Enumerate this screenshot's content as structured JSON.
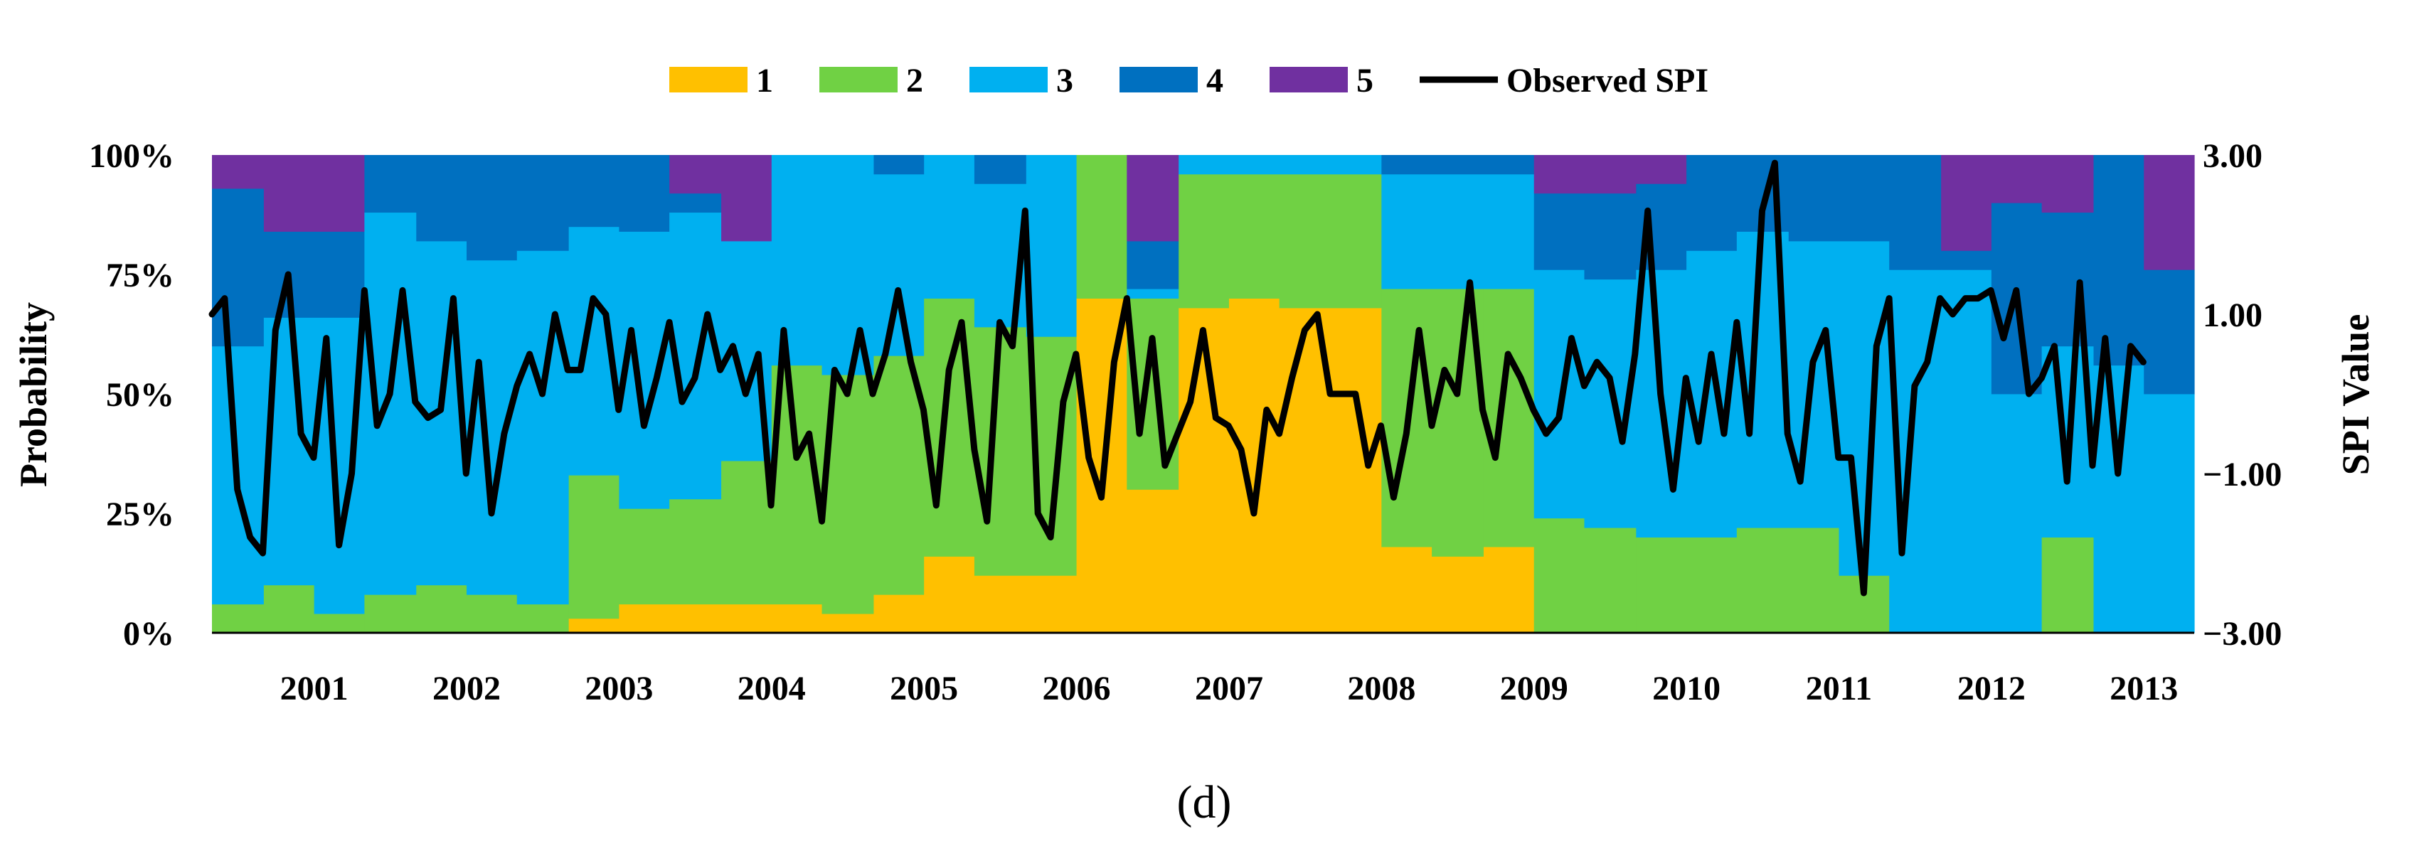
{
  "chart_data": {
    "type": "area",
    "subtype": "stacked-probability-with-line",
    "caption": "(d)",
    "legend": {
      "position": "top",
      "entries": [
        {
          "key": "c1",
          "label": "1",
          "color": "#FFC000"
        },
        {
          "key": "c2",
          "label": "2",
          "color": "#70D144"
        },
        {
          "key": "c3",
          "label": "3",
          "color": "#00B0F0"
        },
        {
          "key": "c4",
          "label": "4",
          "color": "#0070C0"
        },
        {
          "key": "c5",
          "label": "5",
          "color": "#7030A0"
        },
        {
          "key": "spi",
          "label": "Observed SPI",
          "color": "#000000"
        }
      ]
    },
    "y_left": {
      "label": "Probability",
      "ticks": [
        "0%",
        "25%",
        "50%",
        "75%",
        "100%"
      ],
      "range": [
        0,
        100
      ]
    },
    "y_right": {
      "label": "SPI Value",
      "ticks": [
        "−3.00",
        "−1.00",
        "1.00",
        "3.00"
      ],
      "values": [
        -3,
        -1,
        1,
        3
      ],
      "range": [
        -3,
        3
      ]
    },
    "x_axis": {
      "start_year": 2000.33,
      "end_year": 2013.33,
      "tick_labels": [
        "2001",
        "2002",
        "2003",
        "2004",
        "2005",
        "2006",
        "2007",
        "2008",
        "2009",
        "2010",
        "2011",
        "2012",
        "2013"
      ],
      "tick_positions": [
        2001,
        2002,
        2003,
        2004,
        2005,
        2006,
        2007,
        2008,
        2009,
        2010,
        2011,
        2012,
        2013
      ]
    },
    "probabilities": [
      {
        "t": 2000.33,
        "p": [
          0,
          6,
          54,
          33,
          7
        ]
      },
      {
        "t": 2000.67,
        "p": [
          0,
          10,
          56,
          18,
          16
        ]
      },
      {
        "t": 2001.0,
        "p": [
          0,
          4,
          62,
          18,
          16
        ]
      },
      {
        "t": 2001.33,
        "p": [
          0,
          8,
          80,
          12,
          0
        ]
      },
      {
        "t": 2001.67,
        "p": [
          0,
          10,
          72,
          18,
          0
        ]
      },
      {
        "t": 2002.0,
        "p": [
          0,
          8,
          70,
          22,
          0
        ]
      },
      {
        "t": 2002.33,
        "p": [
          0,
          6,
          74,
          20,
          0
        ]
      },
      {
        "t": 2002.67,
        "p": [
          3,
          30,
          52,
          15,
          0
        ]
      },
      {
        "t": 2003.0,
        "p": [
          6,
          20,
          58,
          16,
          0
        ]
      },
      {
        "t": 2003.33,
        "p": [
          6,
          22,
          60,
          4,
          8
        ]
      },
      {
        "t": 2003.67,
        "p": [
          6,
          30,
          46,
          0,
          18
        ]
      },
      {
        "t": 2004.0,
        "p": [
          6,
          50,
          44,
          0,
          0
        ]
      },
      {
        "t": 2004.33,
        "p": [
          4,
          50,
          46,
          0,
          0
        ]
      },
      {
        "t": 2004.67,
        "p": [
          8,
          50,
          38,
          4,
          0
        ]
      },
      {
        "t": 2005.0,
        "p": [
          16,
          54,
          30,
          0,
          0
        ]
      },
      {
        "t": 2005.33,
        "p": [
          12,
          52,
          30,
          6,
          0
        ]
      },
      {
        "t": 2005.67,
        "p": [
          12,
          50,
          38,
          0,
          0
        ]
      },
      {
        "t": 2006.0,
        "p": [
          70,
          30,
          0,
          0,
          0
        ]
      },
      {
        "t": 2006.33,
        "p": [
          30,
          40,
          2,
          10,
          18
        ]
      },
      {
        "t": 2006.67,
        "p": [
          68,
          28,
          4,
          0,
          0
        ]
      },
      {
        "t": 2007.0,
        "p": [
          70,
          26,
          4,
          0,
          0
        ]
      },
      {
        "t": 2007.33,
        "p": [
          68,
          28,
          4,
          0,
          0
        ]
      },
      {
        "t": 2007.67,
        "p": [
          68,
          28,
          4,
          0,
          0
        ]
      },
      {
        "t": 2008.0,
        "p": [
          18,
          54,
          24,
          4,
          0
        ]
      },
      {
        "t": 2008.33,
        "p": [
          16,
          56,
          24,
          4,
          0
        ]
      },
      {
        "t": 2008.67,
        "p": [
          18,
          54,
          24,
          4,
          0
        ]
      },
      {
        "t": 2009.0,
        "p": [
          0,
          24,
          52,
          16,
          8
        ]
      },
      {
        "t": 2009.33,
        "p": [
          0,
          22,
          52,
          18,
          8
        ]
      },
      {
        "t": 2009.67,
        "p": [
          0,
          20,
          56,
          18,
          6
        ]
      },
      {
        "t": 2010.0,
        "p": [
          0,
          20,
          60,
          20,
          0
        ]
      },
      {
        "t": 2010.33,
        "p": [
          0,
          22,
          62,
          16,
          0
        ]
      },
      {
        "t": 2010.67,
        "p": [
          0,
          22,
          60,
          18,
          0
        ]
      },
      {
        "t": 2011.0,
        "p": [
          0,
          12,
          70,
          18,
          0
        ]
      },
      {
        "t": 2011.33,
        "p": [
          0,
          0,
          76,
          24,
          0
        ]
      },
      {
        "t": 2011.67,
        "p": [
          0,
          0,
          76,
          4,
          20
        ]
      },
      {
        "t": 2012.0,
        "p": [
          0,
          0,
          50,
          40,
          10
        ]
      },
      {
        "t": 2012.33,
        "p": [
          0,
          20,
          40,
          28,
          12
        ]
      },
      {
        "t": 2012.67,
        "p": [
          0,
          0,
          56,
          44,
          0
        ]
      },
      {
        "t": 2013.0,
        "p": [
          0,
          0,
          50,
          26,
          24
        ]
      },
      {
        "t": 2013.33,
        "p": [
          0,
          0,
          50,
          26,
          24
        ]
      }
    ],
    "spi_series": {
      "name": "Observed SPI",
      "t0": 2000.33,
      "dt": 0.08333,
      "values": [
        1.0,
        1.2,
        -1.2,
        -1.8,
        -2.0,
        0.8,
        1.5,
        -0.5,
        -0.8,
        0.7,
        -1.9,
        -1.0,
        1.3,
        -0.4,
        0.0,
        1.3,
        -0.1,
        -0.3,
        -0.2,
        1.2,
        -1.0,
        0.4,
        -1.5,
        -0.5,
        0.1,
        0.5,
        0.0,
        1.0,
        0.3,
        0.3,
        1.2,
        1.0,
        -0.2,
        0.8,
        -0.4,
        0.2,
        0.9,
        -0.1,
        0.2,
        1.0,
        0.3,
        0.6,
        0.0,
        0.5,
        -1.4,
        0.8,
        -0.8,
        -0.5,
        -1.6,
        0.3,
        0.0,
        0.8,
        0.0,
        0.5,
        1.3,
        0.4,
        -0.2,
        -1.4,
        0.3,
        0.9,
        -0.7,
        -1.6,
        0.9,
        0.6,
        2.3,
        -1.5,
        -1.8,
        -0.1,
        0.5,
        -0.8,
        -1.3,
        0.4,
        1.2,
        -0.5,
        0.7,
        -0.9,
        -0.5,
        -0.1,
        0.8,
        -0.3,
        -0.4,
        -0.7,
        -1.5,
        -0.2,
        -0.5,
        0.2,
        0.8,
        1.0,
        0.0,
        0.0,
        0.0,
        -0.9,
        -0.4,
        -1.3,
        -0.5,
        0.8,
        -0.4,
        0.3,
        0.0,
        1.4,
        -0.2,
        -0.8,
        0.5,
        0.2,
        -0.2,
        -0.5,
        -0.3,
        0.7,
        0.1,
        0.4,
        0.2,
        -0.6,
        0.5,
        2.3,
        0.0,
        -1.2,
        0.2,
        -0.6,
        0.5,
        -0.5,
        0.9,
        -0.5,
        2.3,
        2.9,
        -0.5,
        -1.1,
        0.4,
        0.8,
        -0.8,
        -0.8,
        -2.5,
        0.6,
        1.2,
        -2.0,
        0.1,
        0.4,
        1.2,
        1.0,
        1.2,
        1.2,
        1.3,
        0.7,
        1.3,
        0.0,
        0.2,
        0.6,
        -1.1,
        1.4,
        -0.9,
        0.7,
        -1.0,
        0.6,
        0.4
      ]
    }
  }
}
